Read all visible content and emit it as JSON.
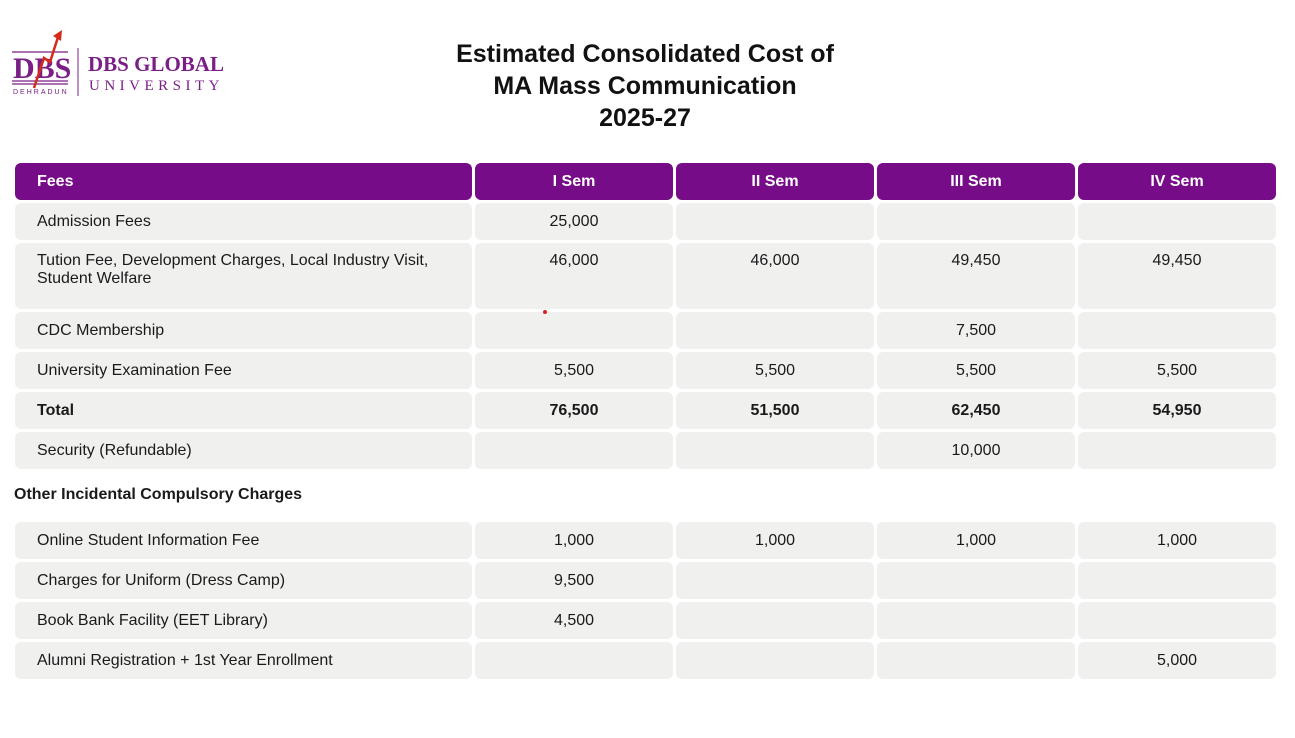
{
  "logo": {
    "mark": "DBS",
    "sub": "DEHRADUN",
    "name": "DBS GLOBAL",
    "name2": "UNIVERSITY"
  },
  "title": {
    "line1": "Estimated Consolidated Cost of",
    "line2": "MA Mass Communication",
    "line3": "2025-27"
  },
  "colors": {
    "header": "#760c87",
    "cell": "#f0f0ef"
  },
  "fees_table": {
    "headers": [
      "Fees",
      "I Sem",
      "II Sem",
      "III Sem",
      "IV Sem"
    ],
    "rows": [
      [
        "Admission Fees",
        "25,000",
        "",
        "",
        ""
      ],
      [
        "Tution Fee, Development Charges, Local Industry Visit, Student Welfare",
        "46,000",
        "46,000",
        "49,450",
        "49,450"
      ],
      [
        "CDC Membership",
        "",
        "",
        "7,500",
        ""
      ],
      [
        "University Examination Fee",
        "5,500",
        "5,500",
        "5,500",
        "5,500"
      ],
      [
        "Total",
        "76,500",
        "51,500",
        "62,450",
        "54,950"
      ],
      [
        "Security (Refundable)",
        "",
        "",
        "10,000",
        ""
      ]
    ]
  },
  "other_section": {
    "title": "Other Incidental Compulsory Charges",
    "rows": [
      [
        "Online Student Information Fee",
        "1,000",
        "1,000",
        "1,000",
        "1,000"
      ],
      [
        "Charges for Uniform (Dress Camp)",
        "9,500",
        "",
        "",
        ""
      ],
      [
        "Book Bank Facility (EET Library)",
        "4,500",
        "",
        "",
        ""
      ],
      [
        "Alumni Registration + 1st Year Enrollment",
        "",
        "",
        "",
        "5,000"
      ]
    ]
  }
}
